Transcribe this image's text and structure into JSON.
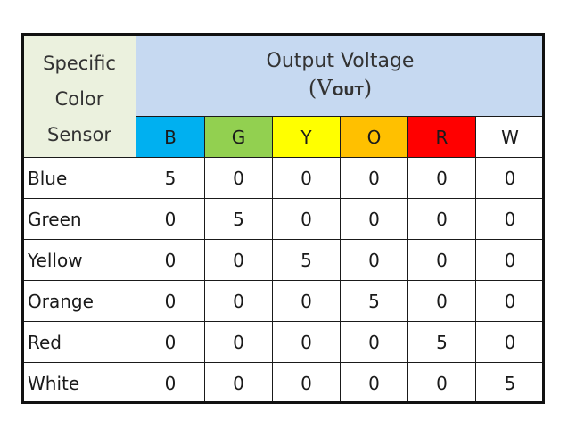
{
  "table": {
    "corner": "Specific Color Sensor",
    "group_title": "Output Voltage",
    "unit_open": "(V",
    "unit_sub": "OUT",
    "unit_close": ")",
    "columns": [
      {
        "label": "B",
        "color": "#00b0f0"
      },
      {
        "label": "G",
        "color": "#92d050"
      },
      {
        "label": "Y",
        "color": "#ffff00"
      },
      {
        "label": "O",
        "color": "#ffc000"
      },
      {
        "label": "R",
        "color": "#ff0000"
      },
      {
        "label": "W",
        "color": "#ffffff"
      }
    ],
    "rows": [
      {
        "label": "Blue",
        "values": [
          5,
          0,
          0,
          0,
          0,
          0
        ]
      },
      {
        "label": "Green",
        "values": [
          0,
          5,
          0,
          0,
          0,
          0
        ]
      },
      {
        "label": "Yellow",
        "values": [
          0,
          0,
          5,
          0,
          0,
          0
        ]
      },
      {
        "label": "Orange",
        "values": [
          0,
          0,
          0,
          5,
          0,
          0
        ]
      },
      {
        "label": "Red",
        "values": [
          0,
          0,
          0,
          0,
          5,
          0
        ]
      },
      {
        "label": "White",
        "values": [
          0,
          0,
          0,
          0,
          0,
          5
        ]
      }
    ]
  }
}
